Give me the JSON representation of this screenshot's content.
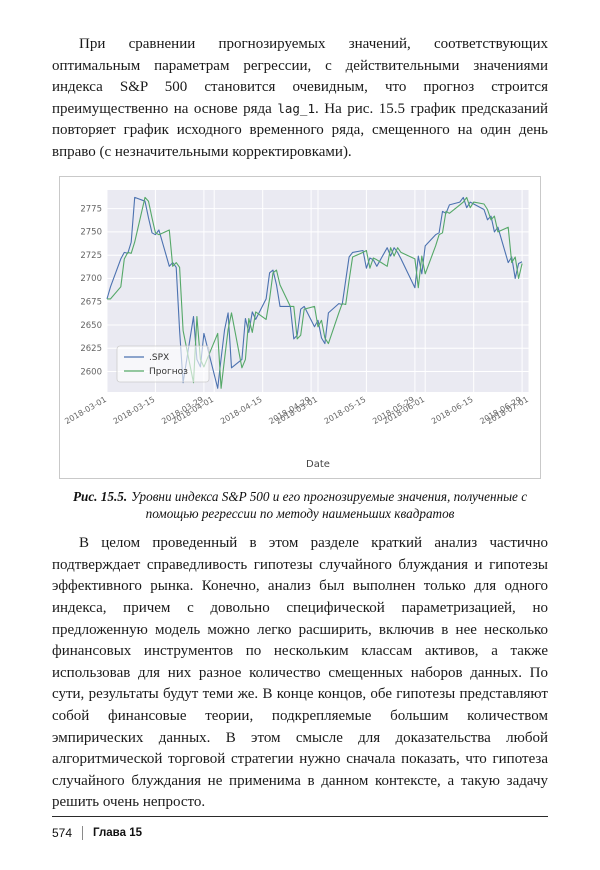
{
  "content": {
    "p1_a": "При сравнении прогнозируемых значений, соответствующих оптимальным параметрам регрессии, с действительными значениями индекса S&P 500 становится очевидным, что прогноз строится преимущественно на основе ряда ",
    "p1_code": "lag_1",
    "p1_b": ". На рис. 15.5 график предсказаний повторяет график исходного временного ряда, смещенного на один день вправо (с незначительными корректировками).",
    "p2": "В целом проведенный в этом разделе краткий анализ частично подтверждает справедливость гипотезы случайного блуждания и гипотезы эффективного рынка. Конечно, анализ был выполнен только для одного индекса, причем с довольно специфической параметризацией, но предложенную модель можно легко расширить, включив в нее несколько финансовых инструментов по нескольким классам активов, а также использовав для них разное количество смещенных наборов данных. По сути, результаты будут теми же. В конце концов, обе гипотезы представляют собой финансовые теории, подкрепляемые большим количеством эмпирических данных. В этом смысле для доказательства любой алгоритмической торговой стратегии нужно сначала показать, что гипотеза случайного блуждания не применима в данном контексте, а такую задачу решить очень непросто."
  },
  "figure": {
    "caption_label": "Рис. 15.5.",
    "caption_text": "Уровни индекса S&P 500 и его прогнозируемые значения, полученные с помощью регрессии по методу наименьших квадратов"
  },
  "footer": {
    "page_number": "574",
    "chapter": "Глава 15"
  },
  "chart_data": {
    "type": "line",
    "xlabel": "Date",
    "plot_bg": "#eaeaf2",
    "grid_color": "#ffffff",
    "xlim": [
      "2018-03-01",
      "2018-07-01"
    ],
    "ylim": [
      2578,
      2795
    ],
    "y_ticks": [
      2600,
      2625,
      2650,
      2675,
      2700,
      2725,
      2750,
      2775
    ],
    "x_ticks": [
      "2018-03-01",
      "2018-03-15",
      "2018-03-29",
      "2018-04-01",
      "2018-04-15",
      "2018-04-29",
      "2018-05-01",
      "2018-05-15",
      "2018-05-29",
      "2018-06-01",
      "2018-06-15",
      "2018-06-29",
      "2018-07-01"
    ],
    "legend_position": "lower-left",
    "dates": [
      "2018-03-01",
      "2018-03-02",
      "2018-03-05",
      "2018-03-06",
      "2018-03-07",
      "2018-03-08",
      "2018-03-09",
      "2018-03-12",
      "2018-03-13",
      "2018-03-14",
      "2018-03-15",
      "2018-03-16",
      "2018-03-19",
      "2018-03-20",
      "2018-03-21",
      "2018-03-22",
      "2018-03-23",
      "2018-03-26",
      "2018-03-27",
      "2018-03-28",
      "2018-03-29",
      "2018-04-02",
      "2018-04-03",
      "2018-04-04",
      "2018-04-05",
      "2018-04-06",
      "2018-04-09",
      "2018-04-10",
      "2018-04-11",
      "2018-04-12",
      "2018-04-13",
      "2018-04-16",
      "2018-04-17",
      "2018-04-18",
      "2018-04-19",
      "2018-04-20",
      "2018-04-23",
      "2018-04-24",
      "2018-04-25",
      "2018-04-26",
      "2018-04-27",
      "2018-04-30",
      "2018-05-01",
      "2018-05-02",
      "2018-05-03",
      "2018-05-04",
      "2018-05-07",
      "2018-05-08",
      "2018-05-09",
      "2018-05-10",
      "2018-05-11",
      "2018-05-14",
      "2018-05-15",
      "2018-05-16",
      "2018-05-17",
      "2018-05-18",
      "2018-05-21",
      "2018-05-22",
      "2018-05-23",
      "2018-05-24",
      "2018-05-25",
      "2018-05-29",
      "2018-05-30",
      "2018-05-31",
      "2018-06-01",
      "2018-06-04",
      "2018-06-05",
      "2018-06-06",
      "2018-06-07",
      "2018-06-08",
      "2018-06-11",
      "2018-06-12",
      "2018-06-13",
      "2018-06-14",
      "2018-06-15",
      "2018-06-18",
      "2018-06-19",
      "2018-06-20",
      "2018-06-21",
      "2018-06-22",
      "2018-06-25",
      "2018-06-26",
      "2018-06-27",
      "2018-06-28",
      "2018-06-29"
    ],
    "series": [
      {
        "name": ".SPX",
        "color": "#4C72B0",
        "values": [
          2678,
          2691,
          2721,
          2728,
          2727,
          2739,
          2787,
          2783,
          2765,
          2749,
          2747,
          2752,
          2713,
          2717,
          2712,
          2644,
          2588,
          2659,
          2613,
          2605,
          2641,
          2582,
          2614,
          2645,
          2663,
          2604,
          2613,
          2657,
          2642,
          2664,
          2656,
          2678,
          2706,
          2709,
          2693,
          2670,
          2670,
          2635,
          2639,
          2667,
          2670,
          2648,
          2655,
          2636,
          2630,
          2663,
          2673,
          2672,
          2698,
          2723,
          2728,
          2730,
          2711,
          2722,
          2720,
          2713,
          2733,
          2724,
          2733,
          2728,
          2721,
          2690,
          2724,
          2705,
          2735,
          2747,
          2749,
          2772,
          2770,
          2779,
          2782,
          2787,
          2776,
          2782,
          2780,
          2774,
          2763,
          2767,
          2750,
          2755,
          2717,
          2723,
          2700,
          2716,
          2718
        ]
      },
      {
        "name": "Прогноз",
        "color": "#55A868",
        "values": [
          2678,
          2678,
          2691,
          2721,
          2728,
          2727,
          2739,
          2787,
          2783,
          2765,
          2749,
          2747,
          2752,
          2713,
          2717,
          2712,
          2644,
          2588,
          2659,
          2613,
          2605,
          2641,
          2582,
          2614,
          2645,
          2663,
          2604,
          2613,
          2657,
          2642,
          2664,
          2656,
          2678,
          2706,
          2709,
          2693,
          2670,
          2670,
          2635,
          2639,
          2667,
          2670,
          2648,
          2655,
          2636,
          2630,
          2663,
          2673,
          2672,
          2698,
          2723,
          2728,
          2730,
          2711,
          2722,
          2720,
          2713,
          2733,
          2724,
          2733,
          2728,
          2721,
          2690,
          2724,
          2705,
          2735,
          2747,
          2749,
          2772,
          2770,
          2779,
          2782,
          2787,
          2776,
          2782,
          2780,
          2774,
          2763,
          2767,
          2750,
          2755,
          2717,
          2723,
          2700,
          2716
        ]
      }
    ]
  }
}
